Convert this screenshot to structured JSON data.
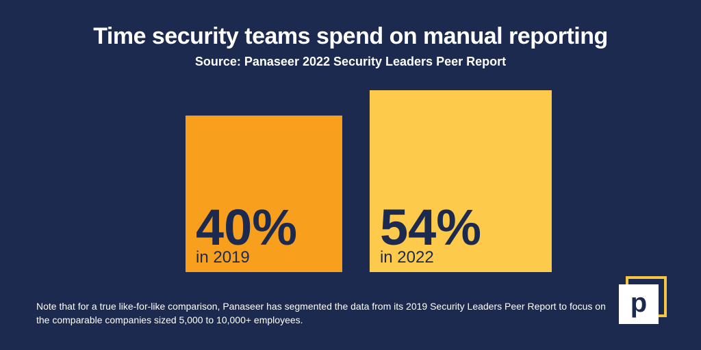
{
  "chart_data": {
    "type": "bar",
    "title": "Time security teams spend on manual reporting",
    "subtitle": "Source: Panaseer 2022 Security Leaders Peer Report",
    "unit": "%",
    "bars": [
      {
        "value": 40,
        "value_label": "40%",
        "caption": "in 2019",
        "color": "#f8a01e"
      },
      {
        "value": 54,
        "value_label": "54%",
        "caption": "in 2022",
        "color": "#fdca4c"
      }
    ],
    "text_color": "#1b2a4e"
  },
  "footnote": "Note that for a true like-for-like comparison, Panaseer has segmented the data from its 2019 Security Leaders Peer Report to focus on the comparable companies sized 5,000 to 10,000+ employees.",
  "logo": {
    "glyph": "p",
    "frame_color": "#f7c544"
  },
  "colors": {
    "background": "#1b2a4e",
    "text": "#ffffff"
  }
}
